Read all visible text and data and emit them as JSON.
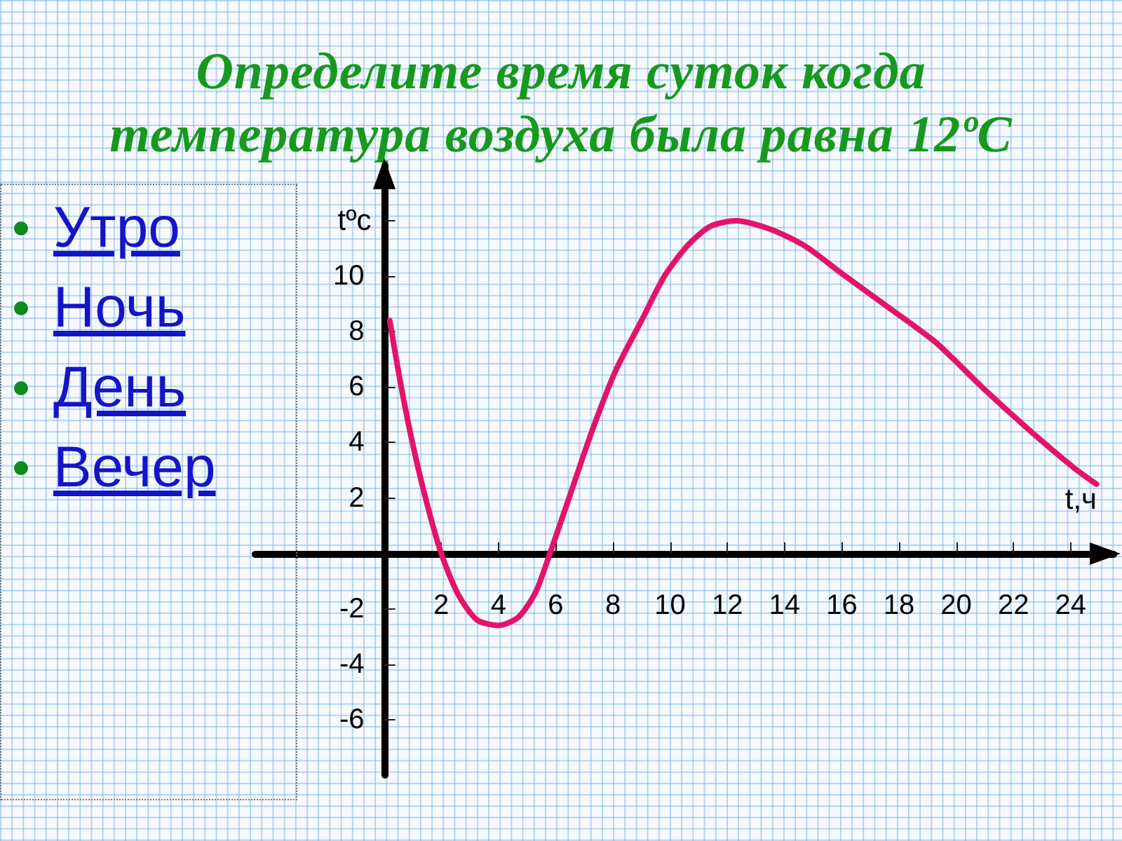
{
  "chart_data": {
    "type": "line",
    "title": "Определите время суток когда температура воздуха была равна 12ºC",
    "xlabel": "t,ч",
    "ylabel": "tºc",
    "annotations": [
      "Утро",
      "Ночь",
      "День",
      "Вечер"
    ],
    "x": [
      0.2,
      0.55,
      0.95,
      1.45,
      2.0,
      2.6,
      3.25,
      4.0,
      4.7,
      5.3,
      5.8,
      6.5,
      7.3,
      8.1,
      9.0,
      9.8,
      10.6,
      11.4,
      12.3,
      13.5,
      14.7,
      16.0,
      17.6,
      19.3,
      20.9,
      22.5,
      24.1,
      24.9
    ],
    "values": [
      8.4,
      6.3,
      4.2,
      2.0,
      0,
      -1.5,
      -2.4,
      -2.6,
      -2.3,
      -1.4,
      0,
      2.1,
      4.5,
      6.6,
      8.4,
      10.0,
      11.1,
      11.8,
      12.0,
      11.7,
      11.1,
      10.1,
      8.9,
      7.6,
      6.0,
      4.5,
      3.1,
      2.5
    ],
    "color": "#e3136b",
    "marker": "none",
    "line_style": "solid",
    "xlim": [
      -4.5,
      25.5
    ],
    "ylim": [
      -8,
      14
    ],
    "xticks": [
      2,
      4,
      6,
      8,
      10,
      12,
      14,
      16,
      18,
      20,
      22,
      24
    ],
    "yticks": [
      -6,
      -4,
      -2,
      2,
      4,
      6,
      8,
      10,
      {
        "value": 12,
        "label": null
      }
    ]
  }
}
